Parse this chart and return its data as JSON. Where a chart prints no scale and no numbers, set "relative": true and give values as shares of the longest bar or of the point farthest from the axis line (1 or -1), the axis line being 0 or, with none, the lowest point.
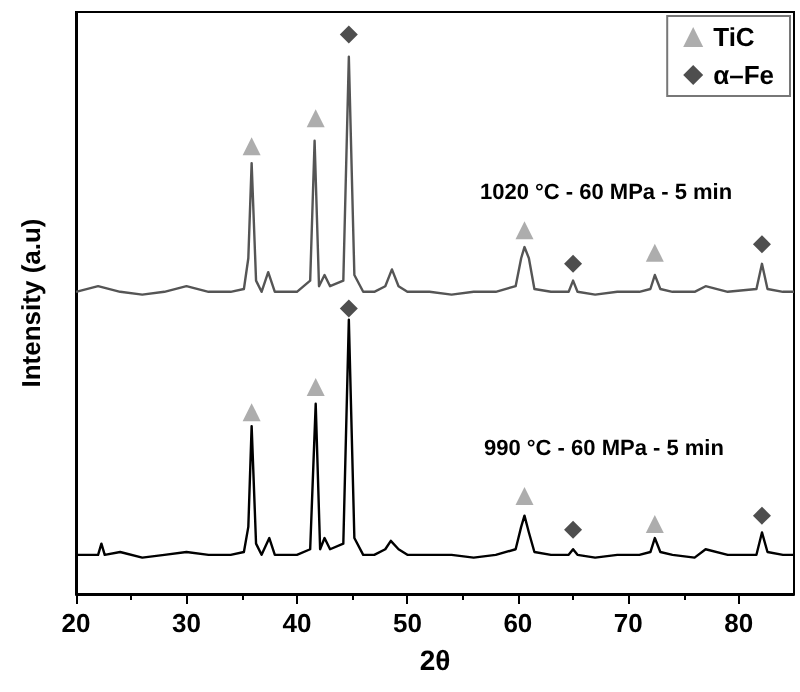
{
  "chart_data": {
    "type": "line",
    "relative": true,
    "xlabel": "2θ",
    "ylabel": "Intensity (a.u)",
    "xlim": [
      20,
      85
    ],
    "xticks": [
      20,
      30,
      40,
      50,
      60,
      70,
      80
    ],
    "grid": false,
    "legend": "top right",
    "annotations": [
      "1020 °C - 60 MPa - 5 min",
      "990 °C - 60 MPa - 5 min"
    ],
    "series": [
      {
        "color": "#555555",
        "marker": "none",
        "x": [
          20,
          22,
          24,
          26,
          28,
          30,
          32,
          34,
          35.2,
          35.6,
          35.9,
          36.3,
          36.8,
          37.4,
          38,
          40,
          41.2,
          41.6,
          42,
          42.5,
          43,
          44.2,
          44.7,
          45.2,
          46,
          47,
          48,
          48.6,
          49.2,
          50,
          52,
          54,
          56,
          58,
          59.8,
          60.3,
          60.6,
          61,
          61.5,
          63,
          64.6,
          65,
          65.4,
          67,
          69,
          71,
          72,
          72.4,
          72.9,
          74,
          76,
          77,
          79,
          81.6,
          82.1,
          82.6,
          84,
          85
        ],
        "values": [
          0.54,
          0.55,
          0.54,
          0.535,
          0.54,
          0.55,
          0.54,
          0.54,
          0.545,
          0.6,
          0.77,
          0.56,
          0.54,
          0.575,
          0.54,
          0.54,
          0.56,
          0.81,
          0.55,
          0.57,
          0.55,
          0.56,
          0.96,
          0.57,
          0.54,
          0.54,
          0.55,
          0.58,
          0.55,
          0.54,
          0.54,
          0.535,
          0.54,
          0.54,
          0.55,
          0.6,
          0.62,
          0.6,
          0.545,
          0.54,
          0.54,
          0.56,
          0.54,
          0.535,
          0.54,
          0.54,
          0.545,
          0.57,
          0.545,
          0.54,
          0.54,
          0.55,
          0.54,
          0.545,
          0.59,
          0.545,
          0.54,
          0.54
        ]
      },
      {
        "color": "#000000",
        "marker": "none",
        "x": [
          20,
          22,
          22.3,
          22.6,
          24,
          26,
          28,
          30,
          32,
          34,
          35.2,
          35.6,
          35.9,
          36.3,
          36.8,
          37.5,
          38,
          40,
          41.2,
          41.7,
          42.1,
          42.5,
          43,
          44.2,
          44.7,
          45.2,
          46,
          47,
          48,
          48.5,
          49.2,
          50,
          52,
          54,
          56,
          58,
          59.8,
          60.3,
          60.6,
          61,
          61.5,
          63,
          64.6,
          65,
          65.4,
          67,
          69,
          71,
          72,
          72.4,
          72.9,
          74,
          76,
          77,
          79,
          81.6,
          82.1,
          82.6,
          84,
          85
        ],
        "values": [
          0.07,
          0.07,
          0.09,
          0.07,
          0.075,
          0.065,
          0.07,
          0.075,
          0.07,
          0.07,
          0.075,
          0.12,
          0.3,
          0.09,
          0.07,
          0.1,
          0.07,
          0.07,
          0.08,
          0.34,
          0.08,
          0.1,
          0.08,
          0.09,
          0.49,
          0.1,
          0.07,
          0.07,
          0.08,
          0.095,
          0.08,
          0.07,
          0.07,
          0.07,
          0.065,
          0.07,
          0.08,
          0.12,
          0.14,
          0.11,
          0.075,
          0.07,
          0.07,
          0.08,
          0.07,
          0.065,
          0.07,
          0.07,
          0.075,
          0.1,
          0.075,
          0.07,
          0.065,
          0.08,
          0.07,
          0.07,
          0.11,
          0.075,
          0.07,
          0.07
        ]
      },
      {
        "type": "scatter",
        "name": "TiC",
        "color": "#999999",
        "marker": "triangle",
        "x": [
          35.9,
          41.7,
          60.6,
          72.4,
          35.9,
          41.7,
          60.6,
          72.4
        ],
        "values": [
          0.8,
          0.85,
          0.65,
          0.61,
          0.325,
          0.37,
          0.175,
          0.125
        ]
      },
      {
        "type": "scatter",
        "name": "α–Fe",
        "color": "#222222",
        "marker": "diamond",
        "x": [
          44.7,
          65,
          82.1,
          44.7,
          65,
          82.1
        ],
        "values": [
          1,
          0.59,
          0.625,
          0.51,
          0.115,
          0.14
        ]
      }
    ]
  }
}
